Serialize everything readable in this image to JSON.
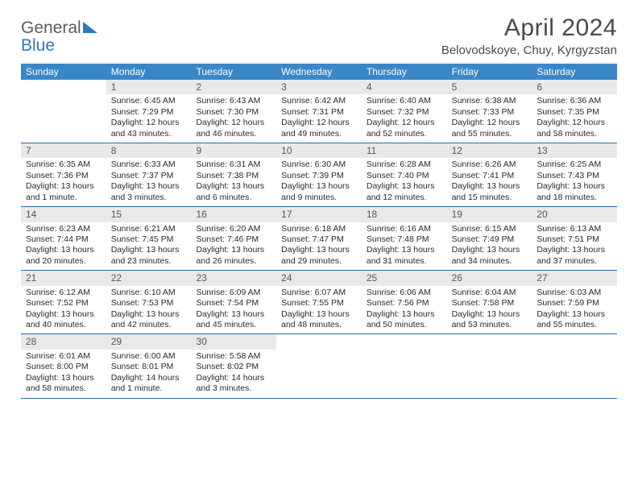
{
  "brand": {
    "word1": "General",
    "word2": "Blue"
  },
  "title": "April 2024",
  "location": "Belovodskoye, Chuy, Kyrgyzstan",
  "style": {
    "header_bg": "#3a87c8",
    "header_text": "#ffffff",
    "daynum_bg": "#e9e9e9",
    "daynum_text": "#555555",
    "divider": "#2f6aa5",
    "body_text": "#2a2a2a",
    "brand_gray": "#5c5c5c",
    "brand_blue": "#2f78bd",
    "background": "#ffffff",
    "header_font_size": 12,
    "day_font_size": 10.5,
    "title_font_size": 30,
    "location_font_size": 15
  },
  "day_headers": [
    "Sunday",
    "Monday",
    "Tuesday",
    "Wednesday",
    "Thursday",
    "Friday",
    "Saturday"
  ],
  "weeks": [
    [
      {
        "n": "",
        "lines": []
      },
      {
        "n": "1",
        "lines": [
          "Sunrise: 6:45 AM",
          "Sunset: 7:29 PM",
          "Daylight: 12 hours",
          "and 43 minutes."
        ]
      },
      {
        "n": "2",
        "lines": [
          "Sunrise: 6:43 AM",
          "Sunset: 7:30 PM",
          "Daylight: 12 hours",
          "and 46 minutes."
        ]
      },
      {
        "n": "3",
        "lines": [
          "Sunrise: 6:42 AM",
          "Sunset: 7:31 PM",
          "Daylight: 12 hours",
          "and 49 minutes."
        ]
      },
      {
        "n": "4",
        "lines": [
          "Sunrise: 6:40 AM",
          "Sunset: 7:32 PM",
          "Daylight: 12 hours",
          "and 52 minutes."
        ]
      },
      {
        "n": "5",
        "lines": [
          "Sunrise: 6:38 AM",
          "Sunset: 7:33 PM",
          "Daylight: 12 hours",
          "and 55 minutes."
        ]
      },
      {
        "n": "6",
        "lines": [
          "Sunrise: 6:36 AM",
          "Sunset: 7:35 PM",
          "Daylight: 12 hours",
          "and 58 minutes."
        ]
      }
    ],
    [
      {
        "n": "7",
        "lines": [
          "Sunrise: 6:35 AM",
          "Sunset: 7:36 PM",
          "Daylight: 13 hours",
          "and 1 minute."
        ]
      },
      {
        "n": "8",
        "lines": [
          "Sunrise: 6:33 AM",
          "Sunset: 7:37 PM",
          "Daylight: 13 hours",
          "and 3 minutes."
        ]
      },
      {
        "n": "9",
        "lines": [
          "Sunrise: 6:31 AM",
          "Sunset: 7:38 PM",
          "Daylight: 13 hours",
          "and 6 minutes."
        ]
      },
      {
        "n": "10",
        "lines": [
          "Sunrise: 6:30 AM",
          "Sunset: 7:39 PM",
          "Daylight: 13 hours",
          "and 9 minutes."
        ]
      },
      {
        "n": "11",
        "lines": [
          "Sunrise: 6:28 AM",
          "Sunset: 7:40 PM",
          "Daylight: 13 hours",
          "and 12 minutes."
        ]
      },
      {
        "n": "12",
        "lines": [
          "Sunrise: 6:26 AM",
          "Sunset: 7:41 PM",
          "Daylight: 13 hours",
          "and 15 minutes."
        ]
      },
      {
        "n": "13",
        "lines": [
          "Sunrise: 6:25 AM",
          "Sunset: 7:43 PM",
          "Daylight: 13 hours",
          "and 18 minutes."
        ]
      }
    ],
    [
      {
        "n": "14",
        "lines": [
          "Sunrise: 6:23 AM",
          "Sunset: 7:44 PM",
          "Daylight: 13 hours",
          "and 20 minutes."
        ]
      },
      {
        "n": "15",
        "lines": [
          "Sunrise: 6:21 AM",
          "Sunset: 7:45 PM",
          "Daylight: 13 hours",
          "and 23 minutes."
        ]
      },
      {
        "n": "16",
        "lines": [
          "Sunrise: 6:20 AM",
          "Sunset: 7:46 PM",
          "Daylight: 13 hours",
          "and 26 minutes."
        ]
      },
      {
        "n": "17",
        "lines": [
          "Sunrise: 6:18 AM",
          "Sunset: 7:47 PM",
          "Daylight: 13 hours",
          "and 29 minutes."
        ]
      },
      {
        "n": "18",
        "lines": [
          "Sunrise: 6:16 AM",
          "Sunset: 7:48 PM",
          "Daylight: 13 hours",
          "and 31 minutes."
        ]
      },
      {
        "n": "19",
        "lines": [
          "Sunrise: 6:15 AM",
          "Sunset: 7:49 PM",
          "Daylight: 13 hours",
          "and 34 minutes."
        ]
      },
      {
        "n": "20",
        "lines": [
          "Sunrise: 6:13 AM",
          "Sunset: 7:51 PM",
          "Daylight: 13 hours",
          "and 37 minutes."
        ]
      }
    ],
    [
      {
        "n": "21",
        "lines": [
          "Sunrise: 6:12 AM",
          "Sunset: 7:52 PM",
          "Daylight: 13 hours",
          "and 40 minutes."
        ]
      },
      {
        "n": "22",
        "lines": [
          "Sunrise: 6:10 AM",
          "Sunset: 7:53 PM",
          "Daylight: 13 hours",
          "and 42 minutes."
        ]
      },
      {
        "n": "23",
        "lines": [
          "Sunrise: 6:09 AM",
          "Sunset: 7:54 PM",
          "Daylight: 13 hours",
          "and 45 minutes."
        ]
      },
      {
        "n": "24",
        "lines": [
          "Sunrise: 6:07 AM",
          "Sunset: 7:55 PM",
          "Daylight: 13 hours",
          "and 48 minutes."
        ]
      },
      {
        "n": "25",
        "lines": [
          "Sunrise: 6:06 AM",
          "Sunset: 7:56 PM",
          "Daylight: 13 hours",
          "and 50 minutes."
        ]
      },
      {
        "n": "26",
        "lines": [
          "Sunrise: 6:04 AM",
          "Sunset: 7:58 PM",
          "Daylight: 13 hours",
          "and 53 minutes."
        ]
      },
      {
        "n": "27",
        "lines": [
          "Sunrise: 6:03 AM",
          "Sunset: 7:59 PM",
          "Daylight: 13 hours",
          "and 55 minutes."
        ]
      }
    ],
    [
      {
        "n": "28",
        "lines": [
          "Sunrise: 6:01 AM",
          "Sunset: 8:00 PM",
          "Daylight: 13 hours",
          "and 58 minutes."
        ]
      },
      {
        "n": "29",
        "lines": [
          "Sunrise: 6:00 AM",
          "Sunset: 8:01 PM",
          "Daylight: 14 hours",
          "and 1 minute."
        ]
      },
      {
        "n": "30",
        "lines": [
          "Sunrise: 5:58 AM",
          "Sunset: 8:02 PM",
          "Daylight: 14 hours",
          "and 3 minutes."
        ]
      },
      {
        "n": "",
        "lines": []
      },
      {
        "n": "",
        "lines": []
      },
      {
        "n": "",
        "lines": []
      },
      {
        "n": "",
        "lines": []
      }
    ]
  ]
}
